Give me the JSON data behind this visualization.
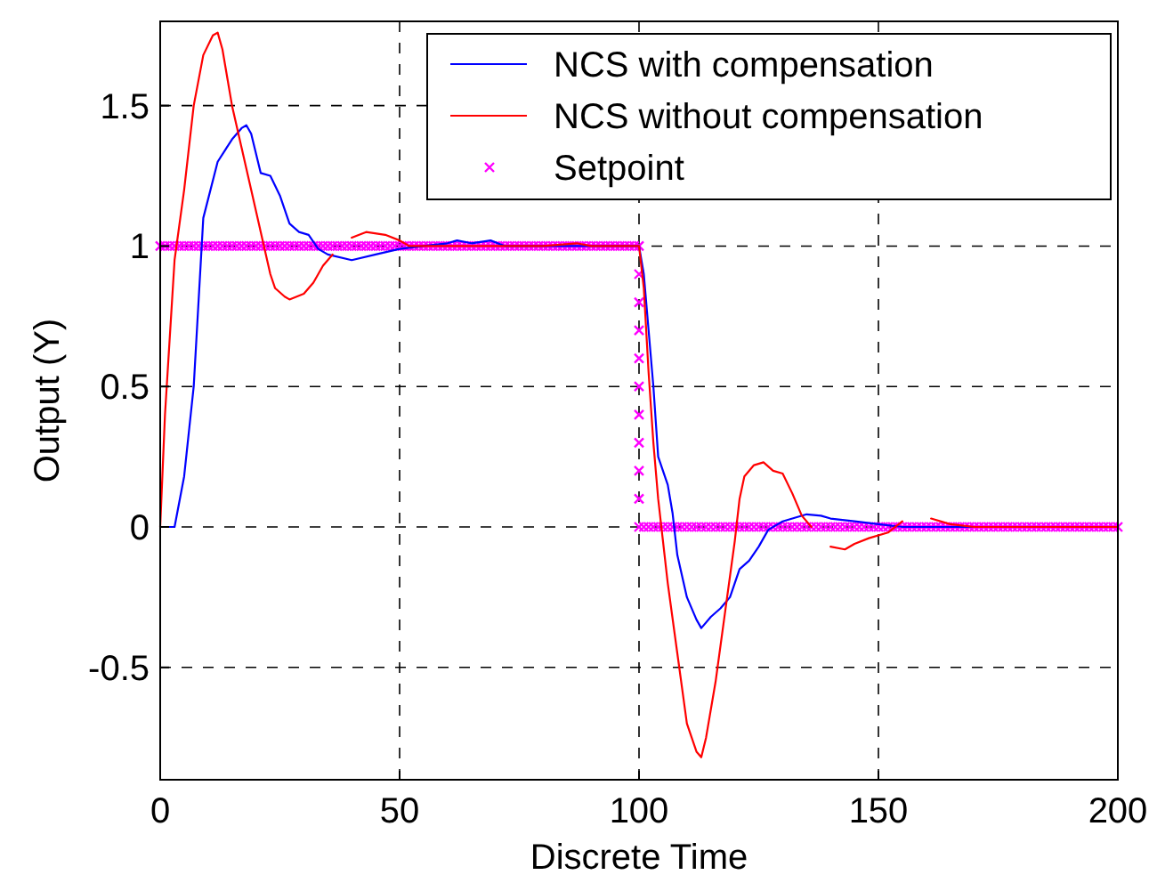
{
  "chart_data": {
    "type": "line",
    "xlabel": "Discrete Time",
    "ylabel": "Output (Y)",
    "xlim": [
      0,
      200
    ],
    "ylim": [
      -0.9,
      1.8
    ],
    "xticks": [
      0,
      50,
      100,
      150,
      200
    ],
    "yticks": [
      -0.5,
      0,
      0.5,
      1,
      1.5
    ],
    "grid": true,
    "legend": "top right",
    "series": [
      {
        "name": "NCS with compensation",
        "color": "#0000ff",
        "x": [
          0,
          3,
          5,
          7,
          9,
          12,
          15,
          17,
          18,
          19,
          21,
          23,
          25,
          27,
          29,
          31,
          33,
          35,
          40,
          45,
          50,
          55,
          60,
          62,
          65,
          69,
          72,
          80,
          100,
          101,
          103,
          104,
          106,
          107,
          108,
          110,
          112,
          113,
          115,
          117,
          119,
          121,
          123,
          125,
          127,
          130,
          135,
          138,
          140,
          145,
          150,
          155,
          200
        ],
        "values": [
          0,
          0,
          0.18,
          0.5,
          1.1,
          1.3,
          1.38,
          1.42,
          1.43,
          1.4,
          1.26,
          1.25,
          1.18,
          1.08,
          1.05,
          1.04,
          0.99,
          0.97,
          0.95,
          0.97,
          0.99,
          1.0,
          1.01,
          1.02,
          1.01,
          1.02,
          1.0,
          1.0,
          1.0,
          0.9,
          0.5,
          0.25,
          0.15,
          0.05,
          -0.1,
          -0.25,
          -0.33,
          -0.36,
          -0.32,
          -0.29,
          -0.25,
          -0.15,
          -0.12,
          -0.07,
          -0.01,
          0.02,
          0.045,
          0.04,
          0.03,
          0.02,
          0.01,
          0,
          0
        ]
      },
      {
        "name": "NCS without compensation",
        "color": "#ff0000",
        "x": [
          0,
          1,
          3,
          5,
          7,
          9,
          11,
          12,
          13,
          15,
          17,
          19,
          21,
          23,
          24,
          26,
          27,
          30,
          32,
          34,
          36,
          38,
          40,
          43,
          47,
          50,
          52,
          55,
          60,
          70,
          80,
          87,
          90,
          100,
          101,
          102,
          103,
          104,
          106,
          108,
          110,
          112,
          113,
          114,
          116,
          118,
          120,
          121,
          122,
          124,
          126,
          128,
          130,
          132,
          134,
          136,
          138,
          140,
          143,
          145,
          148,
          152,
          155,
          158,
          161,
          165,
          170,
          200
        ],
        "values": [
          0,
          0.4,
          0.95,
          1.2,
          1.5,
          1.68,
          1.75,
          1.76,
          1.7,
          1.5,
          1.35,
          1.2,
          1.05,
          0.9,
          0.85,
          0.82,
          0.81,
          0.83,
          0.87,
          0.93,
          0.97,
          null,
          1.03,
          1.05,
          1.04,
          1.02,
          1.0,
          1.0,
          1.0,
          1.0,
          1.0,
          1.01,
          1.0,
          1.0,
          0.85,
          0.55,
          0.3,
          0.1,
          -0.2,
          -0.45,
          -0.7,
          -0.8,
          -0.82,
          -0.75,
          -0.55,
          -0.3,
          -0.05,
          0.1,
          0.18,
          0.22,
          0.23,
          0.2,
          0.19,
          0.12,
          0.04,
          0.0,
          null,
          -0.07,
          -0.08,
          -0.06,
          -0.04,
          -0.02,
          0.02,
          null,
          0.03,
          0.01,
          0,
          0
        ]
      },
      {
        "name": "Setpoint",
        "color": "#ff00ff",
        "type": "scatter",
        "marker": "cross",
        "x": [
          0,
          1,
          2,
          3,
          4,
          5,
          6,
          7,
          8,
          9,
          10,
          11,
          12,
          13,
          14,
          15,
          16,
          17,
          18,
          19,
          20,
          21,
          22,
          23,
          24,
          25,
          26,
          27,
          28,
          29,
          30,
          31,
          32,
          33,
          34,
          35,
          36,
          37,
          38,
          39,
          40,
          41,
          42,
          43,
          44,
          45,
          46,
          47,
          48,
          49,
          50,
          51,
          52,
          53,
          54,
          55,
          56,
          57,
          58,
          59,
          60,
          61,
          62,
          63,
          64,
          65,
          66,
          67,
          68,
          69,
          70,
          71,
          72,
          73,
          74,
          75,
          76,
          77,
          78,
          79,
          80,
          81,
          82,
          83,
          84,
          85,
          86,
          87,
          88,
          89,
          90,
          91,
          92,
          93,
          94,
          95,
          96,
          97,
          98,
          99,
          100,
          100,
          100,
          100,
          100,
          100,
          100,
          100,
          100,
          100,
          100,
          101,
          102,
          103,
          104,
          105,
          106,
          107,
          108,
          109,
          110,
          111,
          112,
          113,
          114,
          115,
          116,
          117,
          118,
          119,
          120,
          121,
          122,
          123,
          124,
          125,
          126,
          127,
          128,
          129,
          130,
          131,
          132,
          133,
          134,
          135,
          136,
          137,
          138,
          139,
          140,
          141,
          142,
          143,
          144,
          145,
          146,
          147,
          148,
          149,
          150,
          151,
          152,
          153,
          154,
          155,
          156,
          157,
          158,
          159,
          160,
          161,
          162,
          163,
          164,
          165,
          166,
          167,
          168,
          169,
          170,
          171,
          172,
          173,
          174,
          175,
          176,
          177,
          178,
          179,
          180,
          181,
          182,
          183,
          184,
          185,
          186,
          187,
          188,
          189,
          190,
          191,
          192,
          193,
          194,
          195,
          196,
          197,
          198,
          199,
          200
        ],
        "values": [
          1,
          1,
          1,
          1,
          1,
          1,
          1,
          1,
          1,
          1,
          1,
          1,
          1,
          1,
          1,
          1,
          1,
          1,
          1,
          1,
          1,
          1,
          1,
          1,
          1,
          1,
          1,
          1,
          1,
          1,
          1,
          1,
          1,
          1,
          1,
          1,
          1,
          1,
          1,
          1,
          1,
          1,
          1,
          1,
          1,
          1,
          1,
          1,
          1,
          1,
          1,
          1,
          1,
          1,
          1,
          1,
          1,
          1,
          1,
          1,
          1,
          1,
          1,
          1,
          1,
          1,
          1,
          1,
          1,
          1,
          1,
          1,
          1,
          1,
          1,
          1,
          1,
          1,
          1,
          1,
          1,
          1,
          1,
          1,
          1,
          1,
          1,
          1,
          1,
          1,
          1,
          1,
          1,
          1,
          1,
          1,
          1,
          1,
          1,
          1,
          1,
          0.9,
          0.8,
          0.7,
          0.6,
          0.5,
          0.4,
          0.3,
          0.2,
          0.1,
          0,
          0,
          0,
          0,
          0,
          0,
          0,
          0,
          0,
          0,
          0,
          0,
          0,
          0,
          0,
          0,
          0,
          0,
          0,
          0,
          0,
          0,
          0,
          0,
          0,
          0,
          0,
          0,
          0,
          0,
          0,
          0,
          0,
          0,
          0,
          0,
          0,
          0,
          0,
          0,
          0,
          0,
          0,
          0,
          0,
          0,
          0,
          0,
          0,
          0,
          0,
          0,
          0,
          0,
          0,
          0,
          0,
          0,
          0,
          0,
          0,
          0,
          0,
          0,
          0,
          0,
          0,
          0,
          0,
          0,
          0,
          0,
          0,
          0,
          0,
          0,
          0,
          0,
          0,
          0,
          0,
          0,
          0,
          0,
          0,
          0,
          0,
          0,
          0,
          0,
          0,
          0,
          0,
          0,
          0,
          0,
          0,
          0,
          0,
          0,
          0
        ]
      }
    ]
  }
}
